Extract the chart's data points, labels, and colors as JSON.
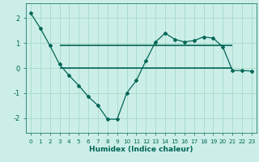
{
  "xlabel": "Humidex (Indice chaleur)",
  "background_color": "#cceee8",
  "grid_color": "#aaddcc",
  "line_color": "#006655",
  "xlim": [
    -0.5,
    23.5
  ],
  "ylim": [
    -2.6,
    2.6
  ],
  "xticks": [
    0,
    1,
    2,
    3,
    4,
    5,
    6,
    7,
    8,
    9,
    10,
    11,
    12,
    13,
    14,
    15,
    16,
    17,
    18,
    19,
    20,
    21,
    22,
    23
  ],
  "yticks": [
    -2,
    -1,
    0,
    1,
    2
  ],
  "main_x": [
    0,
    1,
    2,
    3,
    4,
    5,
    6,
    7,
    8,
    9,
    10,
    11,
    12,
    13,
    14,
    15,
    16,
    17,
    18,
    19,
    20,
    21,
    22,
    23
  ],
  "main_y": [
    2.2,
    1.6,
    0.9,
    0.15,
    -0.3,
    -0.7,
    -1.15,
    -1.5,
    -2.05,
    -2.05,
    -1.0,
    -0.5,
    0.3,
    1.05,
    1.4,
    1.15,
    1.05,
    1.1,
    1.25,
    1.2,
    0.85,
    -0.1,
    -0.1,
    -0.12
  ],
  "upper_line_x": [
    3,
    21
  ],
  "upper_line_y": [
    0.9,
    0.9
  ],
  "lower_line_x": [
    3,
    21
  ],
  "lower_line_y": [
    0.0,
    0.0
  ]
}
